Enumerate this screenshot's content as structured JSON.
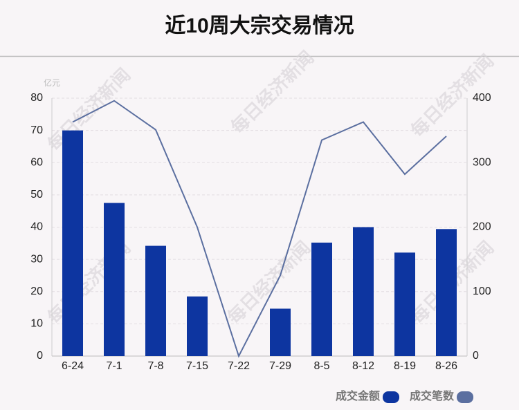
{
  "chart_data": {
    "type": "bar",
    "title": "近10周大宗交易情况",
    "y_label": "亿元",
    "watermark": "每日经济新闻",
    "categories": [
      "6-24",
      "7-1",
      "7-8",
      "7-15",
      "7-22",
      "7-29",
      "8-5",
      "8-12",
      "8-19",
      "8-26"
    ],
    "series": [
      {
        "name": "成交金额",
        "type": "bar",
        "color": "#0d35a0",
        "values": [
          70,
          47.5,
          34.2,
          18.5,
          0,
          14.7,
          35.2,
          40,
          32.1,
          39.4
        ]
      },
      {
        "name": "成交笔数",
        "type": "line",
        "axis": "y2",
        "color": "#5b6fa0",
        "values": [
          363,
          396,
          351,
          200,
          0,
          125,
          335,
          363,
          282,
          341
        ]
      }
    ],
    "ylim": [
      0,
      80
    ],
    "yticks": [
      0,
      10,
      20,
      30,
      40,
      50,
      60,
      70,
      80
    ],
    "y2lim": [
      0,
      400
    ],
    "y2ticks": [
      0,
      100,
      200,
      300,
      400
    ],
    "grid": true
  }
}
